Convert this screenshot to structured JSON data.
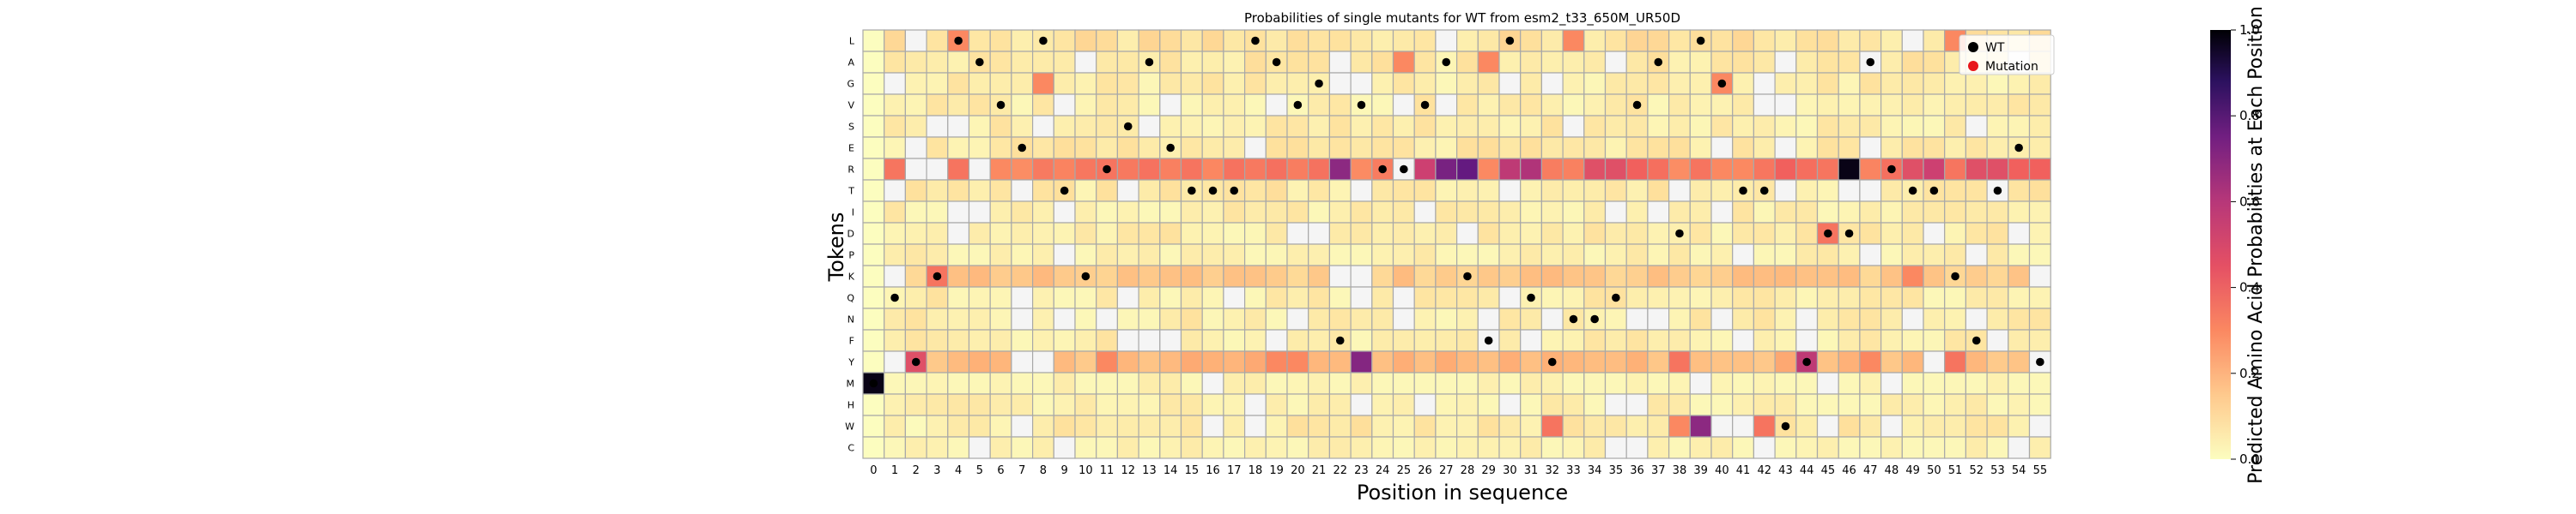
{
  "chart_data": {
    "type": "heatmap",
    "title": "Probabilities of single mutants for WT from esm2_t33_650M_UR50D",
    "xlabel": "Position in sequence",
    "ylabel": "Tokens",
    "x": [
      0,
      1,
      2,
      3,
      4,
      5,
      6,
      7,
      8,
      9,
      10,
      11,
      12,
      13,
      14,
      15,
      16,
      17,
      18,
      19,
      20,
      21,
      22,
      23,
      24,
      25,
      26,
      27,
      28,
      29,
      30,
      31,
      32,
      33,
      34,
      35,
      36,
      37,
      38,
      39,
      40,
      41,
      42,
      43,
      44,
      45,
      46,
      47,
      48,
      49,
      50,
      51,
      52,
      53,
      54,
      55
    ],
    "tokens": [
      "L",
      "A",
      "G",
      "V",
      "S",
      "E",
      "R",
      "T",
      "I",
      "D",
      "P",
      "K",
      "Q",
      "N",
      "F",
      "Y",
      "M",
      "H",
      "W",
      "C"
    ],
    "colorbar": {
      "label": "Predicted Amino Acid Probabilities at Each Position",
      "range": [
        0.0,
        1.0
      ],
      "ticks": [
        "0.0",
        "0.2",
        "0.4",
        "0.6",
        "0.8",
        "1.0"
      ],
      "colormap": "magma_r"
    },
    "legend": {
      "placement": "top-right",
      "items": [
        {
          "label": "WT",
          "color": "#000000"
        },
        {
          "label": "Mutation",
          "color": "#e8161b"
        }
      ]
    },
    "wt_sequence": "MQYKLAVELTKRSAETTTLAVGFVRRVAKFLQYNNQVADLGTTWYDDARTTKFTEY",
    "highlights": {
      "0:M": 0.98,
      "2:Y": 0.45,
      "2:W": 0.01,
      "3:K": 0.35,
      "4:L": 0.3,
      "8:G": 0.3,
      "11:Y": 0.3,
      "19:Y": 0.3,
      "20:Y": 0.3,
      "22:R": 0.7,
      "23:Y": 0.72,
      "25:A": 0.3,
      "26:R": 0.5,
      "27:R": 0.75,
      "28:R": 0.8,
      "29:A": 0.3,
      "30:R": 0.55,
      "31:R": 0.6,
      "33:L": 0.3,
      "34:R": 0.45,
      "35:R": 0.45,
      "36:R": 0.4,
      "38:Y": 0.35,
      "38:W": 0.3,
      "39:W": 0.7,
      "39:R": 0.35,
      "40:G": 0.3,
      "42:W": 0.35,
      "43:R": 0.4,
      "44:Y": 0.55,
      "45:D": 0.35,
      "46:R": 0.98,
      "47:Y": 0.3,
      "49:R": 0.45,
      "50:R": 0.5,
      "49:K": 0.3,
      "51:Y": 0.35,
      "51:L": 0.3,
      "52:R": 0.45,
      "53:R": 0.45,
      "54:R": 0.4,
      "55:R": 0.4,
      "32:W": 0.35
    }
  }
}
